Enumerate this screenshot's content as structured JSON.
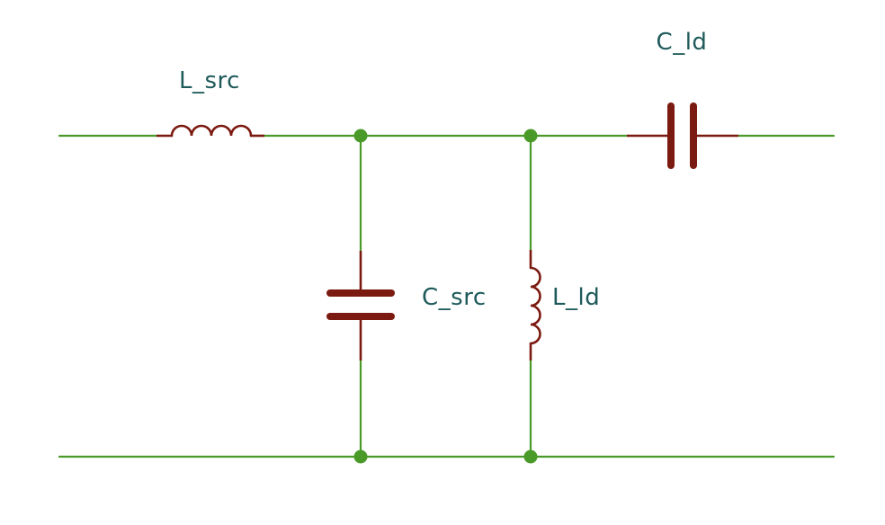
{
  "colors": {
    "wire": "#4a9a2a",
    "component": "#7b1a10",
    "label": "#1f5a5a",
    "junction": "#4a9a2a"
  },
  "components": [
    {
      "ref": "L_src",
      "kind": "inductor"
    },
    {
      "ref": "C_src",
      "kind": "capacitor"
    },
    {
      "ref": "L_ld",
      "kind": "inductor"
    },
    {
      "ref": "C_ld",
      "kind": "capacitor"
    }
  ],
  "labels": {
    "l_src": "L_src",
    "c_src": "C_src",
    "l_ld": "L_ld",
    "c_ld": "C_ld"
  }
}
